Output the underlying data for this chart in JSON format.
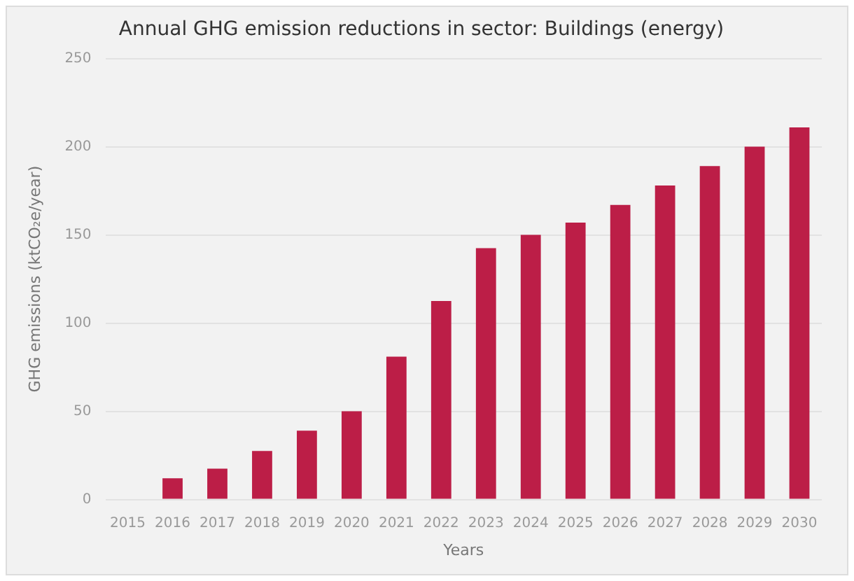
{
  "chart_data": {
    "type": "bar",
    "title": "Annual GHG emission reductions in sector: Buildings (energy)",
    "xlabel": "Years",
    "ylabel": "GHG emissions (ktCO₂e/year)",
    "categories": [
      "2015",
      "2016",
      "2017",
      "2018",
      "2019",
      "2020",
      "2021",
      "2022",
      "2023",
      "2024",
      "2025",
      "2026",
      "2027",
      "2028",
      "2029",
      "2030"
    ],
    "values": [
      0,
      12,
      17.5,
      27.5,
      39,
      50,
      81,
      112.5,
      142.5,
      150,
      157,
      167,
      178,
      189,
      200,
      211
    ],
    "color": "#bc1e47",
    "ylim": [
      0,
      250
    ],
    "yticks": [
      0,
      50,
      100,
      150,
      200,
      250
    ],
    "grid": "y",
    "legend": false
  }
}
